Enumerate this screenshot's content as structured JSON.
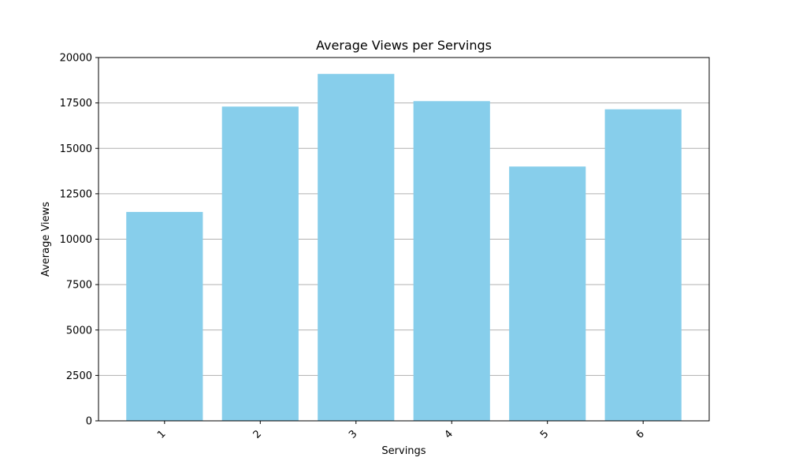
{
  "chart_data": {
    "type": "bar",
    "title": "Average Views per Servings",
    "xlabel": "Servings",
    "ylabel": "Average Views",
    "categories": [
      "1",
      "2",
      "3",
      "4",
      "5",
      "6"
    ],
    "values": [
      11500,
      17300,
      19100,
      17600,
      14000,
      17150
    ],
    "ylim": [
      0,
      20000
    ],
    "yticks": [
      0,
      2500,
      5000,
      7500,
      10000,
      12500,
      15000,
      17500,
      20000
    ],
    "grid": "y-axis",
    "legend": "none",
    "x_tick_rotation_deg": 45,
    "bar_color": "#87ceeb",
    "grid_color": "#b0b0b0"
  }
}
